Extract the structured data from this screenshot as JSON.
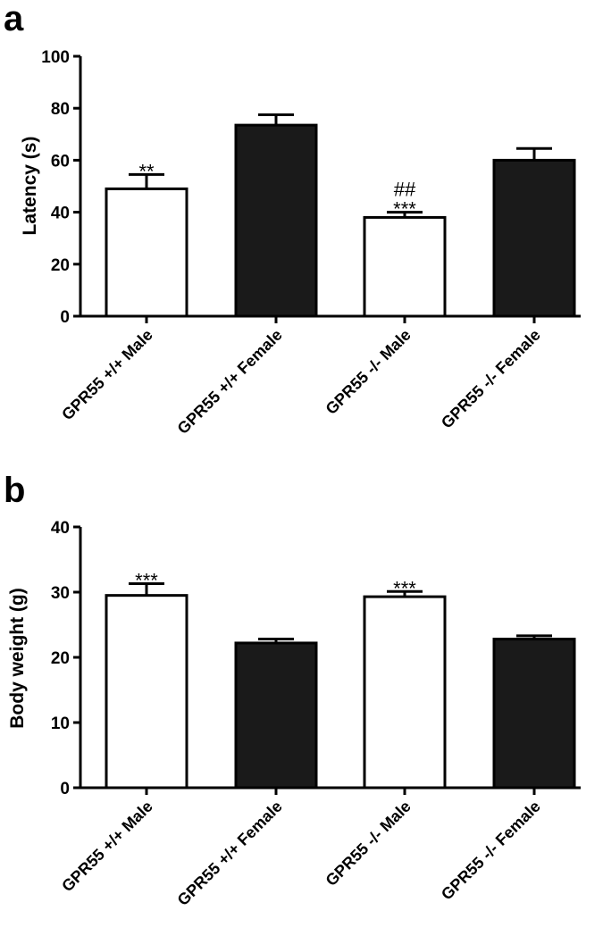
{
  "chart_data": [
    {
      "panel": "a",
      "type": "bar",
      "categories": [
        "GPR55 +/+ Male",
        "GPR55 +/+ Female",
        "GPR55 -/- Male",
        "GPR55 -/- Female"
      ],
      "values": [
        49,
        73.5,
        38,
        60
      ],
      "errors": [
        5.5,
        4,
        2,
        4.5
      ],
      "bar_colors": [
        "#ffffff",
        "#1a1a1a",
        "#ffffff",
        "#1a1a1a"
      ],
      "annotations": [
        {
          "category": 0,
          "lines": [
            "**"
          ]
        },
        {
          "category": 2,
          "lines": [
            "##",
            "***"
          ]
        }
      ],
      "ylabel": "Latency (s)",
      "ylim": [
        0,
        100
      ],
      "yticks": [
        0,
        20,
        40,
        60,
        80,
        100
      ]
    },
    {
      "panel": "b",
      "type": "bar",
      "categories": [
        "GPR55 +/+ Male",
        "GPR55 +/+ Female",
        "GPR55 -/- Male",
        "GPR55 -/- Female"
      ],
      "values": [
        29.5,
        22.2,
        29.3,
        22.8
      ],
      "errors": [
        1.8,
        0.6,
        0.8,
        0.5
      ],
      "bar_colors": [
        "#ffffff",
        "#1a1a1a",
        "#ffffff",
        "#1a1a1a"
      ],
      "annotations": [
        {
          "category": 0,
          "lines": [
            "***"
          ]
        },
        {
          "category": 2,
          "lines": [
            "***"
          ]
        }
      ],
      "ylabel": "Body weight (g)",
      "ylim": [
        0,
        40
      ],
      "yticks": [
        0,
        10,
        20,
        30,
        40
      ]
    }
  ]
}
